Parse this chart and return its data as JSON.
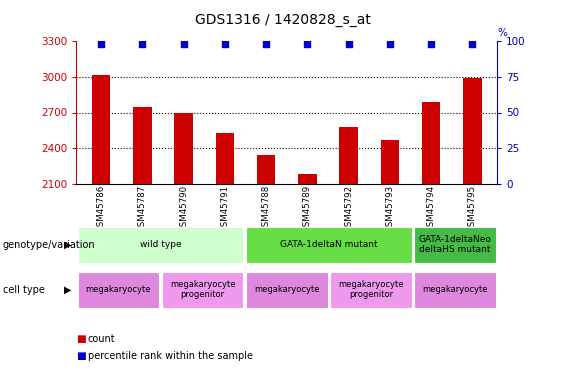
{
  "title": "GDS1316 / 1420828_s_at",
  "samples": [
    "GSM45786",
    "GSM45787",
    "GSM45790",
    "GSM45791",
    "GSM45788",
    "GSM45789",
    "GSM45792",
    "GSM45793",
    "GSM45794",
    "GSM45795"
  ],
  "counts": [
    3020,
    2750,
    2700,
    2530,
    2340,
    2180,
    2580,
    2470,
    2790,
    2990
  ],
  "percentile_ranks": [
    98,
    98,
    98,
    98,
    98,
    98,
    98,
    98,
    98,
    98
  ],
  "ylim_left": [
    2100,
    3300
  ],
  "ylim_right": [
    0,
    100
  ],
  "yticks_left": [
    2100,
    2400,
    2700,
    3000,
    3300
  ],
  "yticks_right": [
    0,
    25,
    50,
    75,
    100
  ],
  "bar_color": "#CC0000",
  "dot_color": "#0000CC",
  "genotype_groups": [
    {
      "label": "wild type",
      "start": 0,
      "end": 3,
      "color": "#CCFFCC"
    },
    {
      "label": "GATA-1deltaN mutant",
      "start": 4,
      "end": 7,
      "color": "#66DD44"
    },
    {
      "label": "GATA-1deltaNeo\ndeltaHS mutant",
      "start": 8,
      "end": 9,
      "color": "#44BB44"
    }
  ],
  "cell_type_groups": [
    {
      "label": "megakaryocyte",
      "start": 0,
      "end": 1,
      "color": "#DD88DD"
    },
    {
      "label": "megakaryocyte\nprogenitor",
      "start": 2,
      "end": 3,
      "color": "#EE99EE"
    },
    {
      "label": "megakaryocyte",
      "start": 4,
      "end": 5,
      "color": "#DD88DD"
    },
    {
      "label": "megakaryocyte\nprogenitor",
      "start": 6,
      "end": 7,
      "color": "#EE99EE"
    },
    {
      "label": "megakaryocyte",
      "start": 8,
      "end": 9,
      "color": "#DD88DD"
    }
  ],
  "left_axis_color": "#CC0000",
  "right_axis_color": "#0000BB",
  "grid_lines": [
    3000,
    2700,
    2400
  ],
  "title_fontsize": 10,
  "tick_fontsize": 7.5,
  "bar_width": 0.45
}
